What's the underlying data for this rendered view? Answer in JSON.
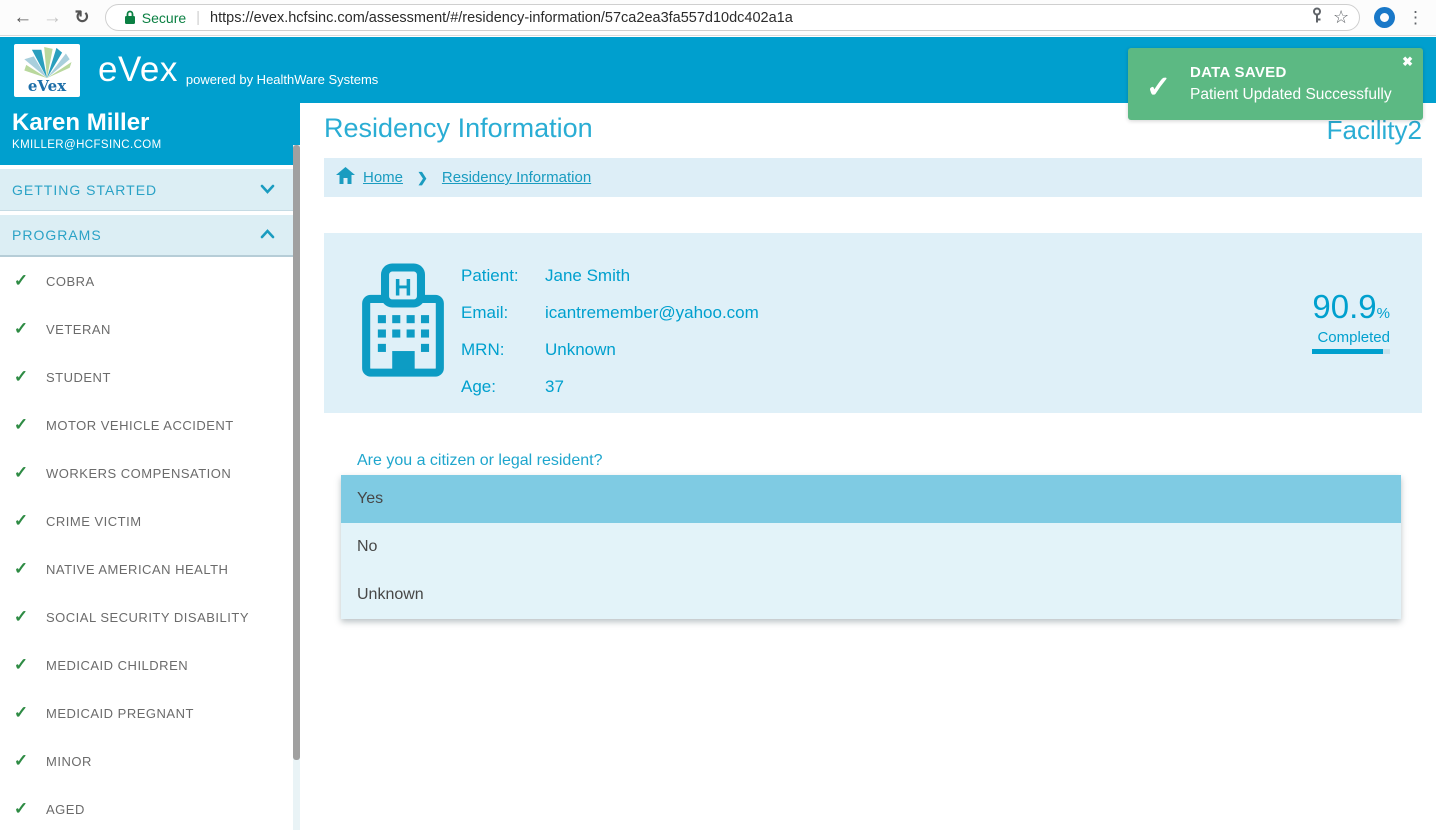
{
  "browser": {
    "secure_label": "Secure",
    "url": "https://evex.hcfsinc.com/assessment/#/residency-information/57ca2ea3fa557d10dc402a1a"
  },
  "header": {
    "logo_text": "eVex",
    "brand": "eVex",
    "tagline": "powered by HealthWare Systems"
  },
  "toast": {
    "title": "DATA SAVED",
    "message": "Patient Updated Successfully",
    "check_glyph": "✓",
    "close_glyph": "✖"
  },
  "sidebar": {
    "user_name": "Karen Miller",
    "user_email": "KMILLER@HCFSINC.COM",
    "sections": [
      {
        "label": "GETTING STARTED",
        "state": "collapsed"
      },
      {
        "label": "PROGRAMS",
        "state": "expanded"
      }
    ],
    "check_glyph": "✓",
    "programs": [
      "COBRA",
      "VETERAN",
      "STUDENT",
      "MOTOR VEHICLE ACCIDENT",
      "WORKERS COMPENSATION",
      "CRIME VICTIM",
      "NATIVE AMERICAN HEALTH",
      "SOCIAL SECURITY DISABILITY",
      "MEDICAID CHILDREN",
      "MEDICAID PREGNANT",
      "MINOR",
      "AGED"
    ]
  },
  "main": {
    "title": "Residency Information",
    "facility": "Facility2",
    "breadcrumb": [
      "Home",
      "Residency Information"
    ],
    "patient": {
      "labels": {
        "patient": "Patient:",
        "email": "Email:",
        "mrn": "MRN:",
        "age": "Age:"
      },
      "values": {
        "patient": "Jane Smith",
        "email": "icantremember@yahoo.com",
        "mrn": "Unknown",
        "age": "37"
      }
    },
    "progress": {
      "percent": "90.9",
      "percent_sign": "%",
      "label": "Completed",
      "value": 90.9
    },
    "question": {
      "text": "Are you a citizen or legal resident?",
      "options": [
        "Yes",
        "No",
        "Unknown"
      ],
      "selected": "Yes"
    }
  },
  "colors": {
    "header_teal": "#009fce",
    "accent_teal": "#2aadd4",
    "card_bg": "#dff0f8",
    "breadcrumb_bg": "#ddeef7",
    "toast_green": "#5cb983",
    "selected_option": "#7fcbe3",
    "option_bg": "#e3f3f9",
    "check_green": "#2e8b44",
    "secure_green": "#0b8043"
  }
}
